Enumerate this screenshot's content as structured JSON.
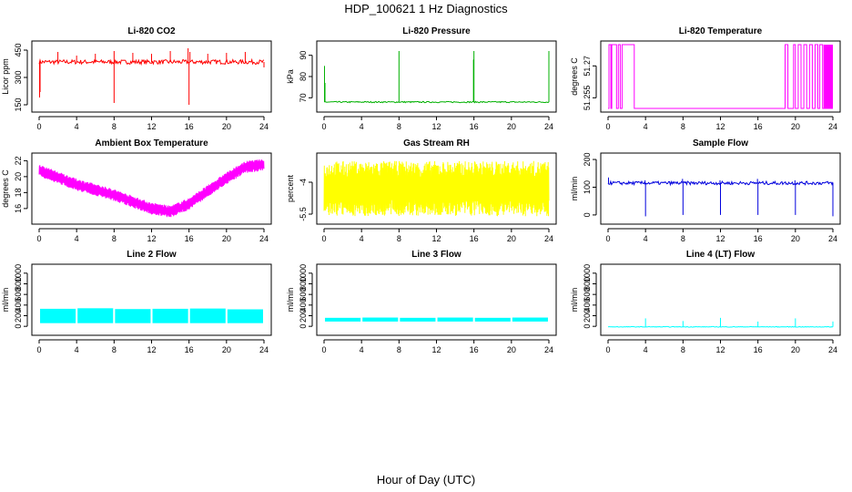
{
  "figure": {
    "title": "HDP_100621  1 Hz Diagnostics",
    "xlabel": "Hour of Day (UTC)"
  },
  "chart_data": [
    {
      "type": "line",
      "title": "Li-820 CO2",
      "ylabel": "Licor ppm",
      "color": "#ff0000",
      "xlim": [
        0,
        24
      ],
      "ylim": [
        130,
        480
      ],
      "xticks": [
        0,
        4,
        8,
        12,
        16,
        20,
        24
      ],
      "yticks": [
        150,
        300,
        450
      ],
      "series": [
        {
          "baseline": 385,
          "noise": 12,
          "spikes": [
            [
              0.05,
              190
            ],
            [
              0.1,
              220
            ],
            [
              2.0,
              440
            ],
            [
              4.0,
              420
            ],
            [
              6.0,
              430
            ],
            [
              8.0,
              160
            ],
            [
              8.0,
              445
            ],
            [
              10.0,
              435
            ],
            [
              12.0,
              430
            ],
            [
              14.0,
              445
            ],
            [
              15.9,
              460
            ],
            [
              16.0,
              150
            ],
            [
              16.1,
              440
            ],
            [
              18.0,
              430
            ],
            [
              20.0,
              435
            ],
            [
              22.0,
              440
            ],
            [
              24.0,
              355
            ]
          ]
        }
      ]
    },
    {
      "type": "line",
      "title": "Li-820 Pressure",
      "ylabel": "kPa",
      "color": "#00b000",
      "xlim": [
        0,
        24
      ],
      "ylim": [
        65,
        95
      ],
      "xticks": [
        0,
        4,
        8,
        12,
        16,
        20,
        24
      ],
      "yticks": [
        70,
        80,
        90
      ],
      "series": [
        {
          "baseline": 68,
          "noise": 0.3,
          "spikes": [
            [
              0.05,
              85
            ],
            [
              0.1,
              77
            ],
            [
              8.0,
              92
            ],
            [
              16.0,
              92
            ],
            [
              15.95,
              88
            ],
            [
              24.0,
              92
            ]
          ]
        }
      ]
    },
    {
      "type": "line",
      "title": "Li-820 Temperature",
      "ylabel": "degrees C",
      "color": "#ff00ff",
      "xlim": [
        0,
        24
      ],
      "ylim": [
        51.25,
        51.28
      ],
      "xticks": [
        0,
        4,
        8,
        12,
        16,
        20,
        24
      ],
      "yticks": [
        51.255,
        51.27
      ],
      "series": [
        {
          "low": 51.25,
          "high": 51.28,
          "switches": [
            0.1,
            0.3,
            0.4,
            0.9,
            1.1,
            1.3,
            1.5,
            2.8,
            18.9,
            19.2,
            19.8,
            20.0,
            20.3,
            20.6,
            20.9,
            21.2,
            21.5,
            21.8,
            22.1,
            22.4,
            22.6,
            22.9
          ],
          "dense_from": 23.0,
          "dense_to": 24.0
        }
      ]
    },
    {
      "type": "line",
      "title": "Ambient Box Temperature",
      "ylabel": "degrees C",
      "color": "#ff00ff",
      "xlim": [
        0,
        24
      ],
      "ylim": [
        14.5,
        22.5
      ],
      "xticks": [
        0,
        4,
        8,
        12,
        16,
        20,
        24
      ],
      "yticks": [
        16,
        18,
        20,
        22
      ],
      "series": [
        {
          "trend": [
            [
              0,
              20.8
            ],
            [
              4,
              19.0
            ],
            [
              8,
              17.7
            ],
            [
              12,
              16.0
            ],
            [
              14,
              15.6
            ],
            [
              16,
              16.6
            ],
            [
              20,
              19.8
            ],
            [
              22,
              21.2
            ],
            [
              24,
              21.5
            ]
          ],
          "band": 1.5
        }
      ]
    },
    {
      "type": "line",
      "title": "Gas Stream RH",
      "ylabel": "percent",
      "color": "#ffff00",
      "xlim": [
        0,
        24
      ],
      "ylim": [
        -5.8,
        -2.8
      ],
      "xticks": [
        0,
        4,
        8,
        12,
        16,
        20,
        24
      ],
      "yticks": [
        -4.0,
        -5.5
      ],
      "series": [
        {
          "center": -4.3,
          "band": 1.3
        }
      ]
    },
    {
      "type": "line",
      "title": "Sample Flow",
      "ylabel": "ml/min",
      "color": "#0000dd",
      "xlim": [
        0,
        24
      ],
      "ylim": [
        -20,
        210
      ],
      "xticks": [
        0,
        4,
        8,
        12,
        16,
        20,
        24
      ],
      "yticks": [
        0,
        100,
        200
      ],
      "series": [
        {
          "baseline": 115,
          "noise": 6,
          "spikes": [
            [
              0.05,
              135
            ],
            [
              4.0,
              -5
            ],
            [
              3.95,
              125
            ],
            [
              8.0,
              0
            ],
            [
              7.95,
              130
            ],
            [
              12.0,
              0
            ],
            [
              11.95,
              125
            ],
            [
              16.0,
              0
            ],
            [
              15.95,
              130
            ],
            [
              20.0,
              0
            ],
            [
              19.95,
              125
            ],
            [
              24.0,
              -5
            ]
          ]
        }
      ]
    },
    {
      "type": "area",
      "title": "Line 2 Flow",
      "ylabel": "ml/min",
      "color": "#00ffff",
      "xlim": [
        0,
        24
      ],
      "ylim": [
        -100,
        1100
      ],
      "xticks": [
        0,
        4,
        8,
        12,
        16,
        20,
        24
      ],
      "yticks": [
        0,
        200,
        400,
        600,
        800,
        1000
      ],
      "series": [
        {
          "segments": [
            [
              0.1,
              3.9,
              330
            ],
            [
              4.1,
              7.9,
              340
            ],
            [
              8.1,
              11.9,
              325
            ],
            [
              12.1,
              15.9,
              330
            ],
            [
              16.1,
              19.9,
              335
            ],
            [
              20.1,
              23.9,
              320
            ]
          ],
          "floor": 60
        }
      ]
    },
    {
      "type": "area",
      "title": "Line 3 Flow",
      "ylabel": "ml/min",
      "color": "#00ffff",
      "xlim": [
        0,
        24
      ],
      "ylim": [
        -100,
        1100
      ],
      "xticks": [
        0,
        4,
        8,
        12,
        16,
        20,
        24
      ],
      "yticks": [
        0,
        200,
        400,
        600,
        800,
        1000
      ],
      "series": [
        {
          "segments": [
            [
              0.1,
              3.9,
              160
            ],
            [
              4.1,
              7.9,
              165
            ],
            [
              8.1,
              11.9,
              160
            ],
            [
              12.1,
              15.9,
              165
            ],
            [
              16.1,
              19.9,
              160
            ],
            [
              20.1,
              23.9,
              165
            ]
          ],
          "floor": 90
        }
      ]
    },
    {
      "type": "line",
      "title": "Line 4 (LT) Flow",
      "ylabel": "ml/min",
      "color": "#00ffff",
      "xlim": [
        0,
        24
      ],
      "ylim": [
        -100,
        1100
      ],
      "xticks": [
        0,
        4,
        8,
        12,
        16,
        20,
        24
      ],
      "yticks": [
        0,
        200,
        400,
        600,
        800,
        1000
      ],
      "series": [
        {
          "baseline": -10,
          "noise": 6,
          "spikes": [
            [
              4.0,
              150
            ],
            [
              8.0,
              100
            ],
            [
              12.0,
              160
            ],
            [
              16.0,
              90
            ],
            [
              20.0,
              150
            ],
            [
              24.0,
              90
            ]
          ]
        }
      ]
    }
  ]
}
